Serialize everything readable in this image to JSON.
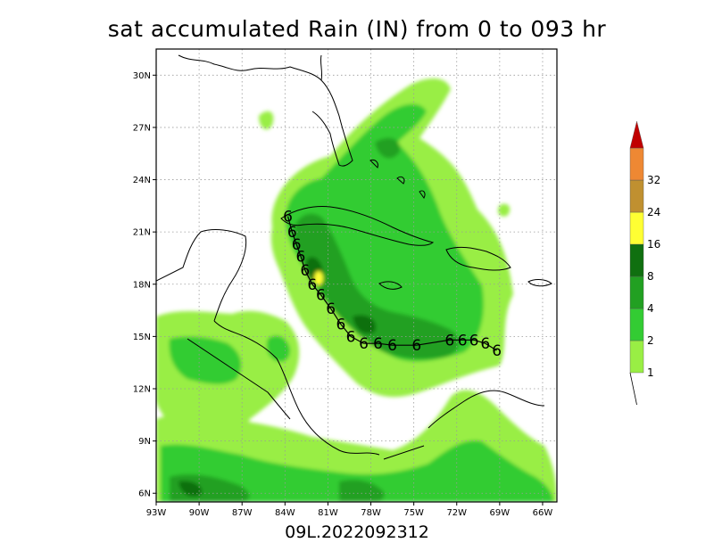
{
  "title": "sat accumulated Rain (IN) from 0 to 093 hr",
  "subtitle": "09L.2022092312",
  "map": {
    "lon_range": [
      -93,
      -65
    ],
    "lat_range": [
      5.5,
      31.5
    ],
    "lon_ticks": [
      "93W",
      "90W",
      "87W",
      "84W",
      "81W",
      "78W",
      "75W",
      "72W",
      "69W",
      "66W"
    ],
    "lat_ticks": [
      "6N",
      "9N",
      "12N",
      "15N",
      "18N",
      "21N",
      "24N",
      "27N",
      "30N"
    ],
    "grid": "dotted"
  },
  "colorbar": {
    "levels": [
      "1",
      "2",
      "4",
      "8",
      "16",
      "24",
      "32"
    ],
    "colors": [
      "#99ee44",
      "#33cc33",
      "#22a022",
      "#107010",
      "#ffff33",
      "#c09030",
      "#ee8833",
      "#c00000"
    ]
  },
  "storm_track": {
    "symbol": "6",
    "points": [
      [
        -69.2,
        14.2
      ],
      [
        -70.0,
        14.6
      ],
      [
        -70.8,
        14.8
      ],
      [
        -71.6,
        14.8
      ],
      [
        -72.5,
        14.8
      ],
      [
        -74.8,
        14.5
      ],
      [
        -76.5,
        14.5
      ],
      [
        -77.5,
        14.6
      ],
      [
        -78.5,
        14.6
      ],
      [
        -79.4,
        15.0
      ],
      [
        -80.1,
        15.7
      ],
      [
        -80.8,
        16.6
      ],
      [
        -81.5,
        17.4
      ],
      [
        -82.1,
        18.0
      ],
      [
        -82.6,
        18.8
      ],
      [
        -82.9,
        19.6
      ],
      [
        -83.2,
        20.3
      ],
      [
        -83.5,
        21.0
      ],
      [
        -83.8,
        21.9
      ]
    ]
  }
}
